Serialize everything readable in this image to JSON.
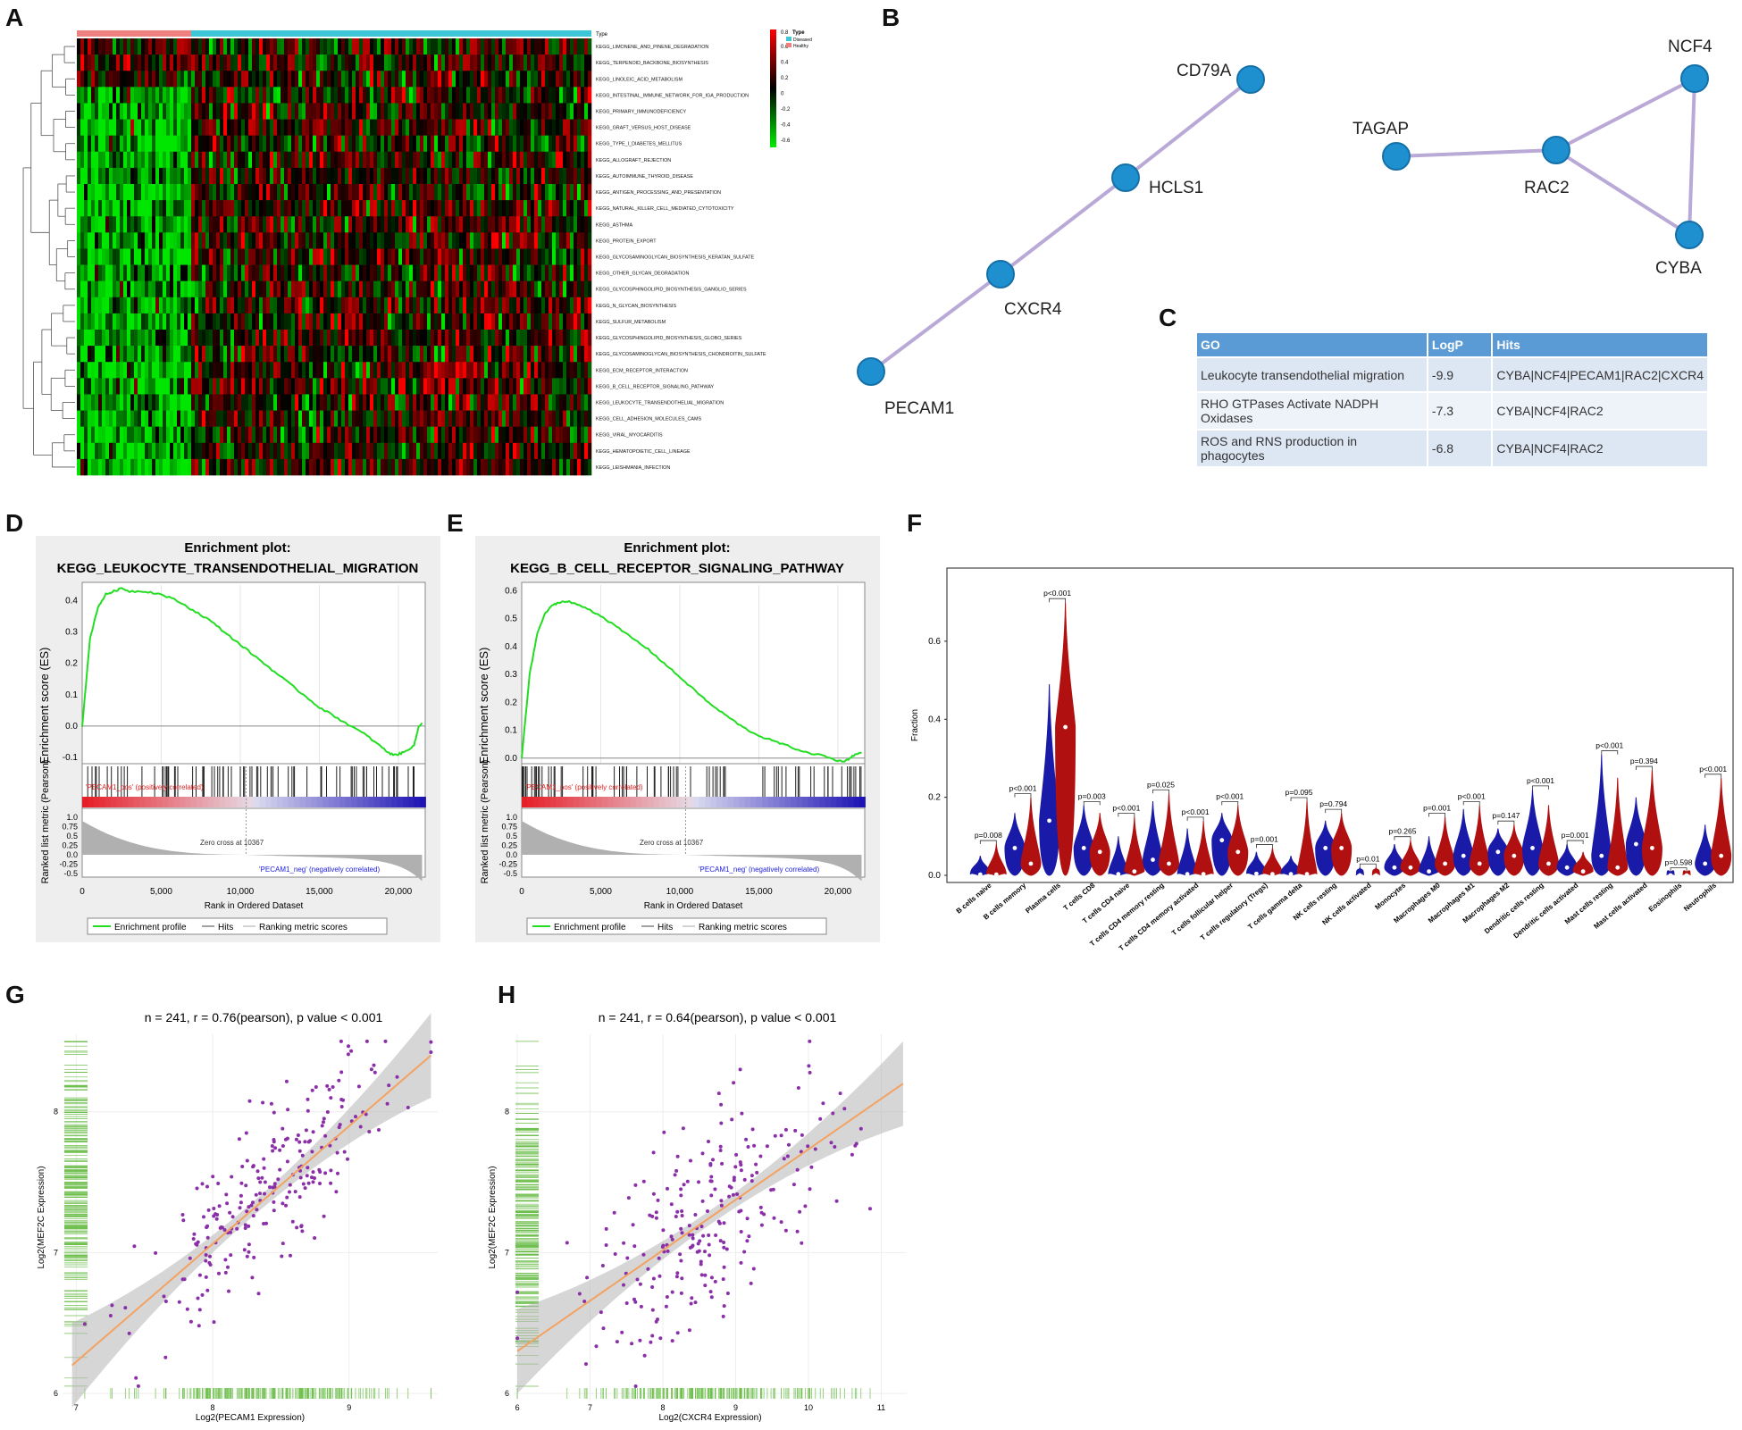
{
  "panels": {
    "A": "A",
    "B": "B",
    "C": "C",
    "D": "D",
    "E": "E",
    "F": "F",
    "G": "G",
    "H": "H"
  },
  "heatmap": {
    "type_label": "Type",
    "legend_type_title": "Type",
    "legend_types": [
      "Diseased",
      "Healthy"
    ],
    "legend_type_colors": [
      "#3cc6d6",
      "#ef8080"
    ],
    "scale_ticks": [
      "0.6",
      "0.4",
      "0.2",
      "0",
      "-0.2",
      "-0.4",
      "-0.6"
    ],
    "scale_top": "0.8",
    "rows": [
      "KEGG_LIMONENE_AND_PINENE_DEGRADATION",
      "KEGG_TERPENOID_BACKBONE_BIOSYNTHESIS",
      "KEGG_LINOLEIC_ACID_METABOLISM",
      "KEGG_INTESTINAL_IMMUNE_NETWORK_FOR_IGA_PRODUCTION",
      "KEGG_PRIMARY_IMMUNODEFICIENCY",
      "KEGG_GRAFT_VERSUS_HOST_DISEASE",
      "KEGG_TYPE_I_DIABETES_MELLITUS",
      "KEGG_ALLOGRAFT_REJECTION",
      "KEGG_AUTOIMMUNE_THYROID_DISEASE",
      "KEGG_ANTIGEN_PROCESSING_AND_PRESENTATION",
      "KEGG_NATURAL_KILLER_CELL_MEDIATED_CYTOTOXICITY",
      "KEGG_ASTHMA",
      "KEGG_PROTEIN_EXPORT",
      "KEGG_GLYCOSAMINOGLYCAN_BIOSYNTHESIS_KERATAN_SULFATE",
      "KEGG_OTHER_GLYCAN_DEGRADATION",
      "KEGG_GLYCOSPHINGOLIPID_BIOSYNTHESIS_GANGLIO_SERIES",
      "KEGG_N_GLYCAN_BIOSYNTHESIS",
      "KEGG_SULFUR_METABOLISM",
      "KEGG_GLYCOSPHINGOLIPID_BIOSYNTHESIS_GLOBO_SERIES",
      "KEGG_GLYCOSAMINOGLYCAN_BIOSYNTHESIS_CHONDROITIN_SULFATE",
      "KEGG_ECM_RECEPTOR_INTERACTION",
      "KEGG_B_CELL_RECEPTOR_SIGNALING_PATHWAY",
      "KEGG_LEUKOCYTE_TRANSENDOTHELIAL_MIGRATION",
      "KEGG_CELL_ADHESION_MOLECULES_CAMS",
      "KEGG_VIRAL_MYOCARDITIS",
      "KEGG_HEMATOPOIETIC_CELL_LINEAGE",
      "KEGG_LEISHMANIA_INFECTION"
    ]
  },
  "network": {
    "node_color": "#1e90d0",
    "edge_color": "#b9a9d6",
    "nodes": [
      "CD79A",
      "HCLS1",
      "CXCR4",
      "PECAM1",
      "NCF4",
      "TAGAP",
      "RAC2",
      "CYBA"
    ]
  },
  "go_table": {
    "headers": [
      "GO",
      "LogP",
      "Hits"
    ],
    "rows": [
      [
        "Leukocyte transendothelial migration",
        "-9.9",
        "CYBA|NCF4|PECAM1|RAC2|CXCR4"
      ],
      [
        "RHO GTPases Activate NADPH Oxidases",
        "-7.3",
        "CYBA|NCF4|RAC2"
      ],
      [
        "ROS and RNS production in phagocytes",
        "-6.8",
        "CYBA|NCF4|RAC2"
      ]
    ]
  },
  "gsea": [
    {
      "title_line1": "Enrichment plot:",
      "title_line2": "KEGG_LEUKOCYTE_TRANSENDOTHELIAL_MIGRATION",
      "es_ticks": [
        "0.4",
        "0.3",
        "0.2",
        "0.1",
        "0.0",
        "-0.1"
      ],
      "es_axis": "Enrichment score (ES)",
      "metric_axis": "Ranked list metric (Pearson)",
      "metric_ticks": [
        "1.0",
        "0.75",
        "0.5",
        "0.25",
        "0.0",
        "-0.25",
        "-0.5"
      ],
      "pos_label": "'PECAM1_pos' (positively correlated)",
      "neg_label": "'PECAM1_neg' (negatively correlated)",
      "zero_cross": "Zero cross at 10367",
      "x_ticks": [
        "0",
        "5,000",
        "10,000",
        "15,000",
        "20,000"
      ],
      "x_label": "Rank in Ordered Dataset",
      "legend": [
        "Enrichment profile",
        "Hits",
        "Ranking metric scores"
      ]
    },
    {
      "title_line1": "Enrichment plot:",
      "title_line2": "KEGG_B_CELL_RECEPTOR_SIGNALING_PATHWAY",
      "es_ticks": [
        "0.6",
        "0.5",
        "0.4",
        "0.3",
        "0.2",
        "0.1",
        "0.0"
      ],
      "es_axis": "Enrichment score (ES)",
      "metric_axis": "Ranked list metric (Pearson)",
      "metric_ticks": [
        "1.0",
        "0.75",
        "0.5",
        "0.25",
        "0.0",
        "-0.25",
        "-0.5"
      ],
      "pos_label": "'PECAM1_pos' (positively correlated)",
      "neg_label": "'PECAM1_neg' (negatively correlated)",
      "zero_cross": "Zero cross at 10367",
      "x_ticks": [
        "0",
        "5,000",
        "10,000",
        "15,000",
        "20,000"
      ],
      "x_label": "Rank in Ordered Dataset",
      "legend": [
        "Enrichment profile",
        "Hits",
        "Ranking metric scores"
      ]
    }
  ],
  "chart_data": [
    {
      "type": "line",
      "title": "KEGG_LEUKOCYTE_TRANSENDOTHELIAL_MIGRATION",
      "xlabel": "Rank in Ordered Dataset",
      "ylabel": "Enrichment score (ES)",
      "xlim": [
        0,
        21700
      ],
      "ylim": [
        -0.12,
        0.45
      ],
      "x": [
        0,
        500,
        1000,
        1500,
        2000,
        2500,
        3000,
        4000,
        5000,
        6000,
        7000,
        8000,
        9000,
        10000,
        11000,
        12000,
        13000,
        14000,
        15000,
        16000,
        17000,
        18000,
        19000,
        19500,
        20000,
        20500,
        21000,
        21300,
        21500
      ],
      "y": [
        0.0,
        0.28,
        0.38,
        0.42,
        0.43,
        0.44,
        0.43,
        0.43,
        0.42,
        0.4,
        0.37,
        0.34,
        0.3,
        0.26,
        0.22,
        0.18,
        0.14,
        0.1,
        0.06,
        0.03,
        0.0,
        -0.03,
        -0.07,
        -0.09,
        -0.09,
        -0.08,
        -0.06,
        0.0,
        0.01
      ]
    },
    {
      "type": "line",
      "title": "KEGG_B_CELL_RECEPTOR_SIGNALING_PATHWAY",
      "xlabel": "Rank in Ordered Dataset",
      "ylabel": "Enrichment score (ES)",
      "xlim": [
        0,
        21700
      ],
      "ylim": [
        -0.02,
        0.62
      ],
      "x": [
        0,
        500,
        1000,
        1500,
        2000,
        2500,
        3000,
        4000,
        5000,
        6000,
        7000,
        8000,
        9000,
        10000,
        11000,
        12000,
        13000,
        14000,
        15000,
        16000,
        17000,
        18000,
        19000,
        20000,
        20500,
        21000,
        21500
      ],
      "y": [
        0.0,
        0.3,
        0.45,
        0.52,
        0.55,
        0.56,
        0.56,
        0.54,
        0.51,
        0.47,
        0.43,
        0.39,
        0.34,
        0.29,
        0.24,
        0.19,
        0.15,
        0.11,
        0.08,
        0.06,
        0.04,
        0.02,
        0.01,
        -0.01,
        -0.01,
        0.01,
        0.02
      ]
    },
    {
      "type": "violin",
      "ylabel": "Fraction",
      "yticks": [
        "0.0",
        "0.2",
        "0.4",
        "0.6"
      ],
      "ylim": [
        0,
        0.76
      ],
      "colors": {
        "diseased": "#1a1aa8",
        "healthy": "#b01010"
      },
      "categories": [
        "B cells naive",
        "B cells memory",
        "Plasma cells",
        "T cells CD8",
        "T cells CD4 naive",
        "T cells CD4 memory resting",
        "T cells CD4 memory activated",
        "T cells follicular helper",
        "T cells regulatory (Tregs)",
        "T cells gamma delta",
        "NK cells resting",
        "NK cells activated",
        "Monocytes",
        "Macrophages M0",
        "Macrophages M1",
        "Macrophages M2",
        "Dendritic cells resting",
        "Dendritic cells activated",
        "Mast cells resting",
        "Mast cells activated",
        "Eosinophils",
        "Neutrophils"
      ],
      "pvalues": [
        "p=0.008",
        "p<0.001",
        "p<0.001",
        "p=0.003",
        "p<0.001",
        "p=0.025",
        "p<0.001",
        "p<0.001",
        "p=0.001",
        "p=0.095",
        "p=0.794",
        "p=0.01",
        "p=0.265",
        "p=0.001",
        "p<0.001",
        "p=0.147",
        "p<0.001",
        "p=0.001",
        "p<0.001",
        "p=0.394",
        "p=0.598",
        "p<0.001"
      ],
      "series": [
        {
          "name": "diseased",
          "median": [
            0.002,
            0.07,
            0.14,
            0.07,
            0.003,
            0.04,
            0.003,
            0.09,
            0.004,
            0.003,
            0.07,
            0.0,
            0.02,
            0.01,
            0.05,
            0.06,
            0.07,
            0.02,
            0.05,
            0.08,
            0.0,
            0.03
          ],
          "max": [
            0.05,
            0.16,
            0.49,
            0.18,
            0.1,
            0.19,
            0.12,
            0.16,
            0.06,
            0.05,
            0.14,
            0.02,
            0.08,
            0.1,
            0.17,
            0.12,
            0.22,
            0.08,
            0.31,
            0.2,
            0.01,
            0.13
          ]
        },
        {
          "name": "healthy",
          "median": [
            0.002,
            0.03,
            0.38,
            0.06,
            0.01,
            0.03,
            0.003,
            0.06,
            0.003,
            0.003,
            0.07,
            0.0,
            0.02,
            0.03,
            0.03,
            0.05,
            0.03,
            0.01,
            0.02,
            0.07,
            0.0,
            0.05
          ],
          "max": [
            0.08,
            0.2,
            0.7,
            0.16,
            0.15,
            0.21,
            0.14,
            0.18,
            0.07,
            0.19,
            0.16,
            0.02,
            0.09,
            0.15,
            0.18,
            0.13,
            0.18,
            0.06,
            0.25,
            0.27,
            0.01,
            0.25
          ]
        }
      ]
    },
    {
      "type": "scatter",
      "title": "n = 241, r = 0.76(pearson), p value < 0.001",
      "xlabel": "Log2(PECAM1 Expression)",
      "ylabel": "Log2(MEF2C Expression)",
      "xticks": [
        "7",
        "8",
        "9"
      ],
      "yticks": [
        "6",
        "7",
        "8"
      ],
      "xlim": [
        6.9,
        9.65
      ],
      "ylim": [
        5.95,
        8.55
      ],
      "fit": [
        [
          6.97,
          6.2
        ],
        [
          9.6,
          8.4
        ]
      ]
    },
    {
      "type": "scatter",
      "title": "n = 241, r = 0.64(pearson), p value < 0.001",
      "xlabel": "Log2(CXCR4 Expression)",
      "ylabel": "Log2(MEF2C Expression)",
      "xticks": [
        "6",
        "7",
        "8",
        "9",
        "10",
        "11"
      ],
      "yticks": [
        "6",
        "7",
        "8"
      ],
      "xlim": [
        5.95,
        11.35
      ],
      "ylim": [
        5.95,
        8.55
      ],
      "fit": [
        [
          6.0,
          6.3
        ],
        [
          11.3,
          8.2
        ]
      ]
    }
  ]
}
